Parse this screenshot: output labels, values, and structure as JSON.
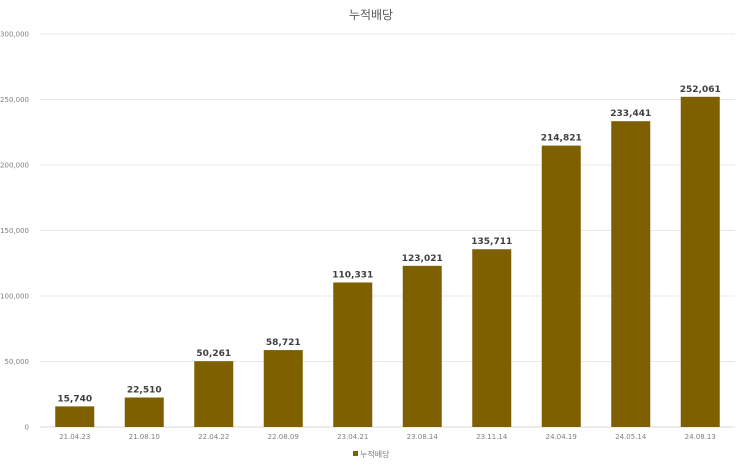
{
  "chart_data": {
    "type": "bar",
    "title": "누적배당",
    "xlabel": "",
    "ylabel": "",
    "ylim": [
      0,
      300000
    ],
    "yticks": [
      0,
      50000,
      100000,
      150000,
      200000,
      250000,
      300000
    ],
    "ytick_labels": [
      "0",
      "50,000",
      "100,000",
      "150,000",
      "200,000",
      "250,000",
      "300,000"
    ],
    "grid": true,
    "legend": "bottom",
    "categories": [
      "21.04.23",
      "21.08.10",
      "22.04.22",
      "22.08.09",
      "23.04.21",
      "23.08.14",
      "23.11.14",
      "24.04.19",
      "24.05.14",
      "24.08.13"
    ],
    "series": [
      {
        "name": "누적배당",
        "color": "#7f6000",
        "values": [
          15740,
          22510,
          50261,
          58721,
          110331,
          123021,
          135711,
          214821,
          233441,
          252061
        ],
        "data_labels": [
          "15,740",
          "22,510",
          "50,261",
          "58,721",
          "110,331",
          "123,021",
          "135,711",
          "214,821",
          "233,441",
          "252,061"
        ]
      }
    ]
  }
}
